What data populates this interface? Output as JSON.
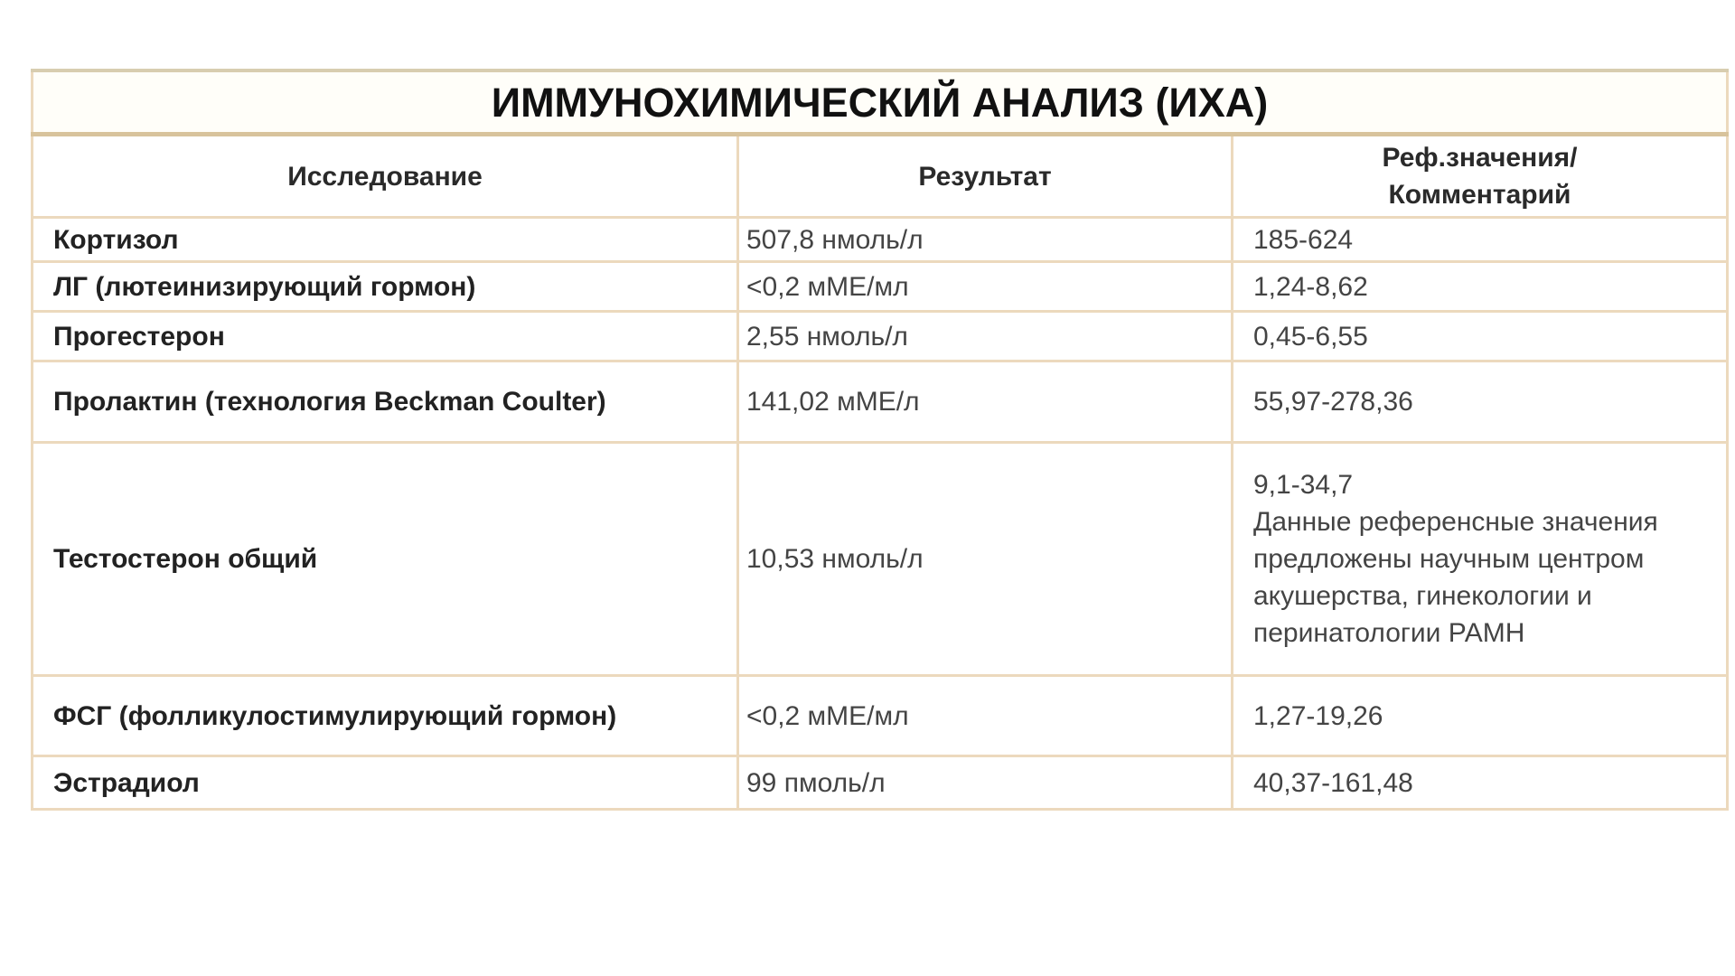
{
  "title": "ИММУНОХИМИЧЕСКИЙ АНАЛИЗ (ИХА)",
  "columns": [
    "Исследование",
    "Результат",
    "Реф.значения/ Комментарий"
  ],
  "rows": [
    {
      "name": "Кортизол",
      "result": "507,8 нмоль/л",
      "ref": "185-624"
    },
    {
      "name": "ЛГ (лютеинизирующий гормон)",
      "result": "<0,2 мМЕ/мл",
      "ref": "1,24-8,62"
    },
    {
      "name": "Прогестерон",
      "result": "2,55 нмоль/л",
      "ref": "0,45-6,55"
    },
    {
      "name": "Пролактин (технология Beckman Coulter)",
      "result": "141,02 мМЕ/л",
      "ref": "55,97-278,36"
    },
    {
      "name": "Тестостерон общий",
      "result": "10,53 нмоль/л",
      "ref": "9,1-34,7",
      "comment": "Данные референсные значения предложены научным центром акушерства, гинекологии и перинатологии РАМН"
    },
    {
      "name": "ФСГ (фолликулостимулирующий гормон)",
      "result": "<0,2 мМЕ/мл",
      "ref": "1,27-19,26"
    },
    {
      "name": "Эстрадиол",
      "result": "99 пмоль/л",
      "ref": "40,37-161,48"
    }
  ]
}
